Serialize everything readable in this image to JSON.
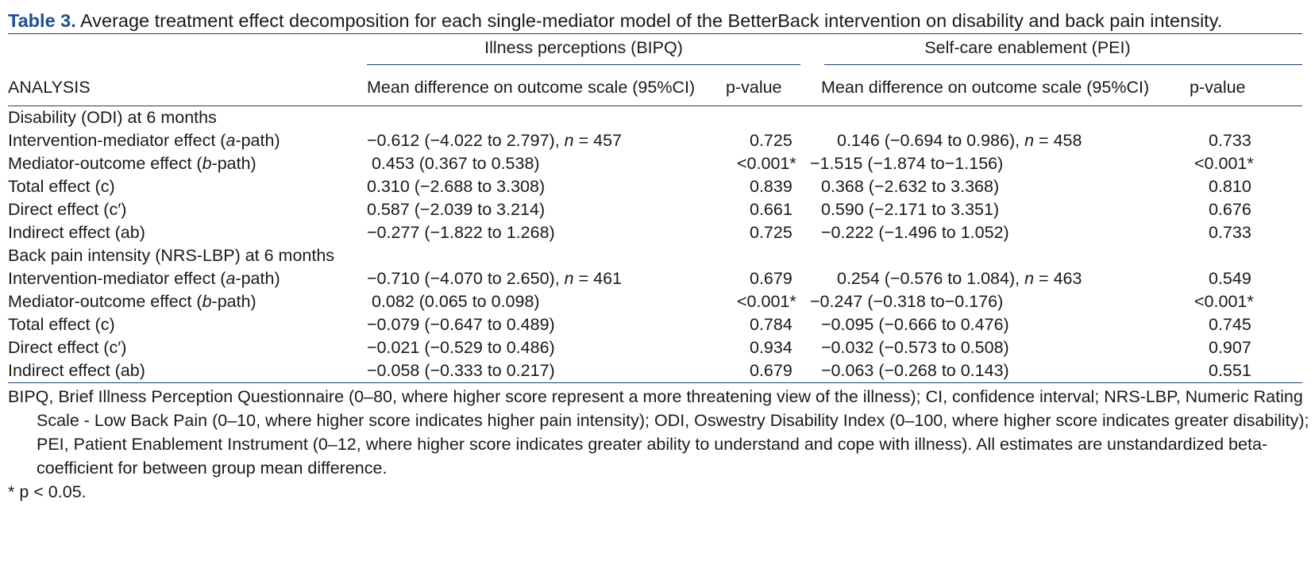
{
  "caption": {
    "label": "Table 3.",
    "text": " Average treatment effect decomposition for each single-mediator model of the BetterBack intervention on disability and back pain intensity."
  },
  "groups": {
    "bipq": "Illness perceptions (BIPQ)",
    "pei": "Self-care enablement (PEI)"
  },
  "headers": {
    "analysis": "ANALYSIS",
    "md_bipq": "Mean difference on outcome scale (95%CI)",
    "p_bipq": "p-value",
    "md_pei": "Mean difference on outcome scale (95%CI)",
    "p_pei": "p-value"
  },
  "rows": [
    {
      "label": "Disability (ODI) at 6 months",
      "section": true
    },
    {
      "pre": "Intervention-mediator effect (",
      "it": "a",
      "post": "-path)",
      "ci1": "−0.612 (−4.022 to 2.797), ",
      "n1": "457",
      "p1": "0.725",
      "ci2": "0.146 (−0.694 to 0.986), ",
      "n2": "458",
      "p2": "0.733",
      "ind1": 96,
      "ind2": 96
    },
    {
      "pre": "Mediator-outcome effect (",
      "it": "b",
      "post": "-path)",
      "ci1": "0.453 (0.367 to 0.538)",
      "p1": "<0.001*",
      "ci2": "−1.515 (−1.874 to−1.156)",
      "p2": "<0.001*",
      "ind1": 102,
      "ind2": 62
    },
    {
      "label": "Total effect (c)",
      "ci1": "0.310 (−2.688 to 3.308)",
      "p1": "0.839",
      "ci2": "0.368 (−2.632 to 3.368)",
      "p2": "0.810",
      "ind1": 96,
      "ind2": 76
    },
    {
      "label": "Direct effect (c′)",
      "ci1": "0.587 (−2.039 to 3.214)",
      "p1": "0.661",
      "ci2": "0.590 (−2.171 to 3.351)",
      "p2": "0.676",
      "ind1": 96,
      "ind2": 76
    },
    {
      "label": "Indirect effect (ab)",
      "ci1": "−0.277 (−1.822 to 1.268)",
      "p1": "0.725",
      "ci2": "−0.222 (−1.496 to 1.052)",
      "p2": "0.733",
      "ind1": 96,
      "ind2": 76
    },
    {
      "label": "Back pain intensity (NRS-LBP) at 6 months",
      "section": true
    },
    {
      "pre": "Intervention-mediator effect (",
      "it": "a",
      "post": "-path)",
      "ci1": "−0.710 (−4.070 to 2.650), ",
      "n1": "461",
      "p1": "0.679",
      "ci2": "0.254 (−0.576 to 1.084), ",
      "n2": "463",
      "p2": "0.549",
      "ind1": 96,
      "ind2": 96
    },
    {
      "pre": "Mediator-outcome effect (",
      "it": "b",
      "post": "-path)",
      "ci1": "0.082 (0.065 to 0.098)",
      "p1": "<0.001*",
      "ci2": "−0.247 (−0.318 to−0.176)",
      "p2": "<0.001*",
      "ind1": 102,
      "ind2": 62
    },
    {
      "label": "Total effect (c)",
      "ci1": "−0.079 (−0.647 to 0.489)",
      "p1": "0.784",
      "ci2": "−0.095 (−0.666 to 0.476)",
      "p2": "0.745",
      "ind1": 96,
      "ind2": 76
    },
    {
      "label": "Direct effect (c′)",
      "ci1": "−0.021 (−0.529 to 0.486)",
      "p1": "0.934",
      "ci2": "−0.032 (−0.573 to 0.508)",
      "p2": "0.907",
      "ind1": 96,
      "ind2": 76
    },
    {
      "label": "Indirect effect (ab)",
      "ci1": "−0.058 (−0.333 to 0.217)",
      "p1": "0.679",
      "ci2": "−0.063 (−0.268 to 0.143)",
      "p2": "0.551",
      "ind1": 96,
      "ind2": 76
    }
  ],
  "footnote": "BIPQ, Brief Illness Perception Questionnaire (0–80, where higher score represent a more threatening view of the illness); CI, confidence interval; NRS-LBP, Numeric Rating Scale - Low Back Pain (0–10, where higher score indicates higher pain intensity); ODI, Oswestry Disability Index (0–100, where higher score indicates greater disability); PEI, Patient Enablement Instrument (0–12, where higher score indicates greater ability to understand and cope with illness). All estimates are unstandardized beta-coefficient for between group mean difference.",
  "significance": "* p < 0.05.",
  "n_prefix": "n",
  "n_eq": " = ",
  "colors": {
    "caption_label": "#1d4f91",
    "rule": "#1d3f73"
  }
}
